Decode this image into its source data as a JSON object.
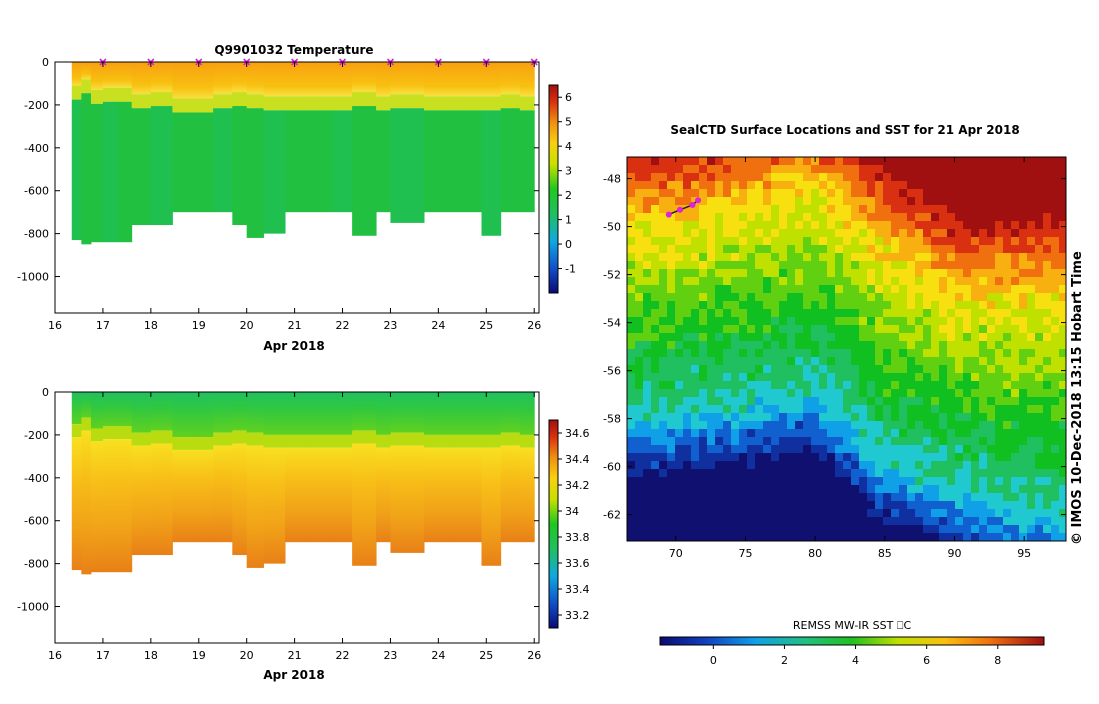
{
  "colors": {
    "frame": "#000000",
    "marker": "#dd22dd",
    "palette": [
      "#101070",
      "#1030a0",
      "#1060d0",
      "#10a0e8",
      "#20c8d0",
      "#20c060",
      "#10c020",
      "#60d010",
      "#c0e000",
      "#f8e010",
      "#f8b010",
      "#f07010",
      "#d83010",
      "#a01010"
    ]
  },
  "charts": {
    "temperature": {
      "title": "Q9901032  Temperature",
      "xlabel": "Apr 2018",
      "x_ticks": [
        "16",
        "17",
        "18",
        "19",
        "20",
        "21",
        "22",
        "23",
        "24",
        "25",
        "26"
      ],
      "y_ticks": [
        "0",
        "-200",
        "-400",
        "-600",
        "-800",
        "-1000"
      ],
      "colorbar_ticks": [
        "6",
        "5",
        "4",
        "3",
        "2",
        "1",
        "0",
        "-1"
      ]
    },
    "salinity": {
      "title": "",
      "xlabel": "Apr 2018",
      "x_ticks": [
        "16",
        "17",
        "18",
        "19",
        "20",
        "21",
        "22",
        "23",
        "24",
        "25",
        "26"
      ],
      "y_ticks": [
        "0",
        "-200",
        "-400",
        "-600",
        "-800",
        "-1000"
      ],
      "colorbar_ticks": [
        "34.6",
        "34.4",
        "34.2",
        "34",
        "33.8",
        "33.6",
        "33.4",
        "33.2"
      ]
    },
    "map": {
      "title": "SealCTD Surface Locations and SST for 21 Apr 2018",
      "x_ticks": [
        "70",
        "75",
        "80",
        "85",
        "90",
        "95"
      ],
      "y_ticks": [
        "-48",
        "-50",
        "-52",
        "-54",
        "-56",
        "-58",
        "-60",
        "-62"
      ],
      "colorbar_label": "REMSS MW-IR SST ⎕C",
      "colorbar_ticks": [
        "0",
        "2",
        "4",
        "6",
        "8"
      ]
    }
  },
  "credit": "©  IMOS 10-Dec-2018 13:15 Hobart Time",
  "chart_data": [
    {
      "type": "heatmap",
      "title": "Q9901032  Temperature",
      "xlabel": "Apr 2018",
      "ylabel": "",
      "xlim": [
        16,
        26.1
      ],
      "ylim": [
        -1170,
        0
      ],
      "colorbar_range": [
        -2,
        6.5
      ],
      "profiles": [
        {
          "t": 16.35,
          "max_depth": 830,
          "thermocline": 110
        },
        {
          "t": 16.55,
          "max_depth": 850,
          "thermocline": 80
        },
        {
          "t": 16.75,
          "max_depth": 840,
          "thermocline": 130
        },
        {
          "t": 17.0,
          "max_depth": 840,
          "thermocline": 120
        },
        {
          "t": 17.3,
          "max_depth": 840,
          "thermocline": 120
        },
        {
          "t": 17.6,
          "max_depth": 760,
          "thermocline": 150
        },
        {
          "t": 18.0,
          "max_depth": 760,
          "thermocline": 140
        },
        {
          "t": 18.45,
          "max_depth": 700,
          "thermocline": 170
        },
        {
          "t": 19.0,
          "max_depth": 700,
          "thermocline": 170
        },
        {
          "t": 19.3,
          "max_depth": 700,
          "thermocline": 150
        },
        {
          "t": 19.7,
          "max_depth": 760,
          "thermocline": 140
        },
        {
          "t": 20.0,
          "max_depth": 820,
          "thermocline": 150
        },
        {
          "t": 20.35,
          "max_depth": 800,
          "thermocline": 160
        },
        {
          "t": 20.8,
          "max_depth": 700,
          "thermocline": 160
        },
        {
          "t": 21.3,
          "max_depth": 700,
          "thermocline": 160
        },
        {
          "t": 21.8,
          "max_depth": 700,
          "thermocline": 160
        },
        {
          "t": 22.2,
          "max_depth": 810,
          "thermocline": 140
        },
        {
          "t": 22.7,
          "max_depth": 700,
          "thermocline": 160
        },
        {
          "t": 23.0,
          "max_depth": 750,
          "thermocline": 150
        },
        {
          "t": 23.7,
          "max_depth": 700,
          "thermocline": 160
        },
        {
          "t": 24.2,
          "max_depth": 700,
          "thermocline": 160
        },
        {
          "t": 24.9,
          "max_depth": 810,
          "thermocline": 160
        },
        {
          "t": 25.3,
          "max_depth": 700,
          "thermocline": 150
        },
        {
          "t": 25.7,
          "max_depth": 700,
          "thermocline": 160
        }
      ],
      "surface_markers": [
        17.0,
        18.0,
        19.0,
        20.0,
        21.0,
        22.0,
        23.0,
        24.0,
        25.0,
        26.0
      ]
    },
    {
      "type": "heatmap",
      "title": "",
      "xlabel": "Apr 2018",
      "ylabel": "",
      "xlim": [
        16,
        26.1
      ],
      "ylim": [
        -1170,
        0
      ],
      "colorbar_range": [
        33.1,
        34.7
      ],
      "note_profiles": "same profiles as temperature"
    },
    {
      "type": "heatmap",
      "title": "SealCTD Surface Locations and SST for 21 Apr 2018",
      "xlabel": "",
      "ylabel": "",
      "xlim": [
        66.5,
        98
      ],
      "ylim": [
        -63.1,
        -47.1
      ],
      "colorbar_label": "REMSS MW-IR SST ⎕C",
      "colorbar_range": [
        -1.5,
        9.3
      ],
      "front_lon_lat_sst": [
        {
          "lon": 70,
          "lat_warm": -50,
          "lat_cold": -58
        },
        {
          "lon": 80,
          "lat_warm": -48.5,
          "lat_cold": -57
        },
        {
          "lon": 85,
          "lat_warm": -51,
          "lat_cold": -60
        },
        {
          "lon": 90,
          "lat_warm": -53,
          "lat_cold": -61
        },
        {
          "lon": 95,
          "lat_warm": -53,
          "lat_cold": -62
        }
      ],
      "seal_track_lon_lat": [
        [
          69.5,
          -49.5
        ],
        [
          70.3,
          -49.3
        ],
        [
          71.2,
          -49.1
        ],
        [
          71.6,
          -48.9
        ]
      ]
    }
  ]
}
